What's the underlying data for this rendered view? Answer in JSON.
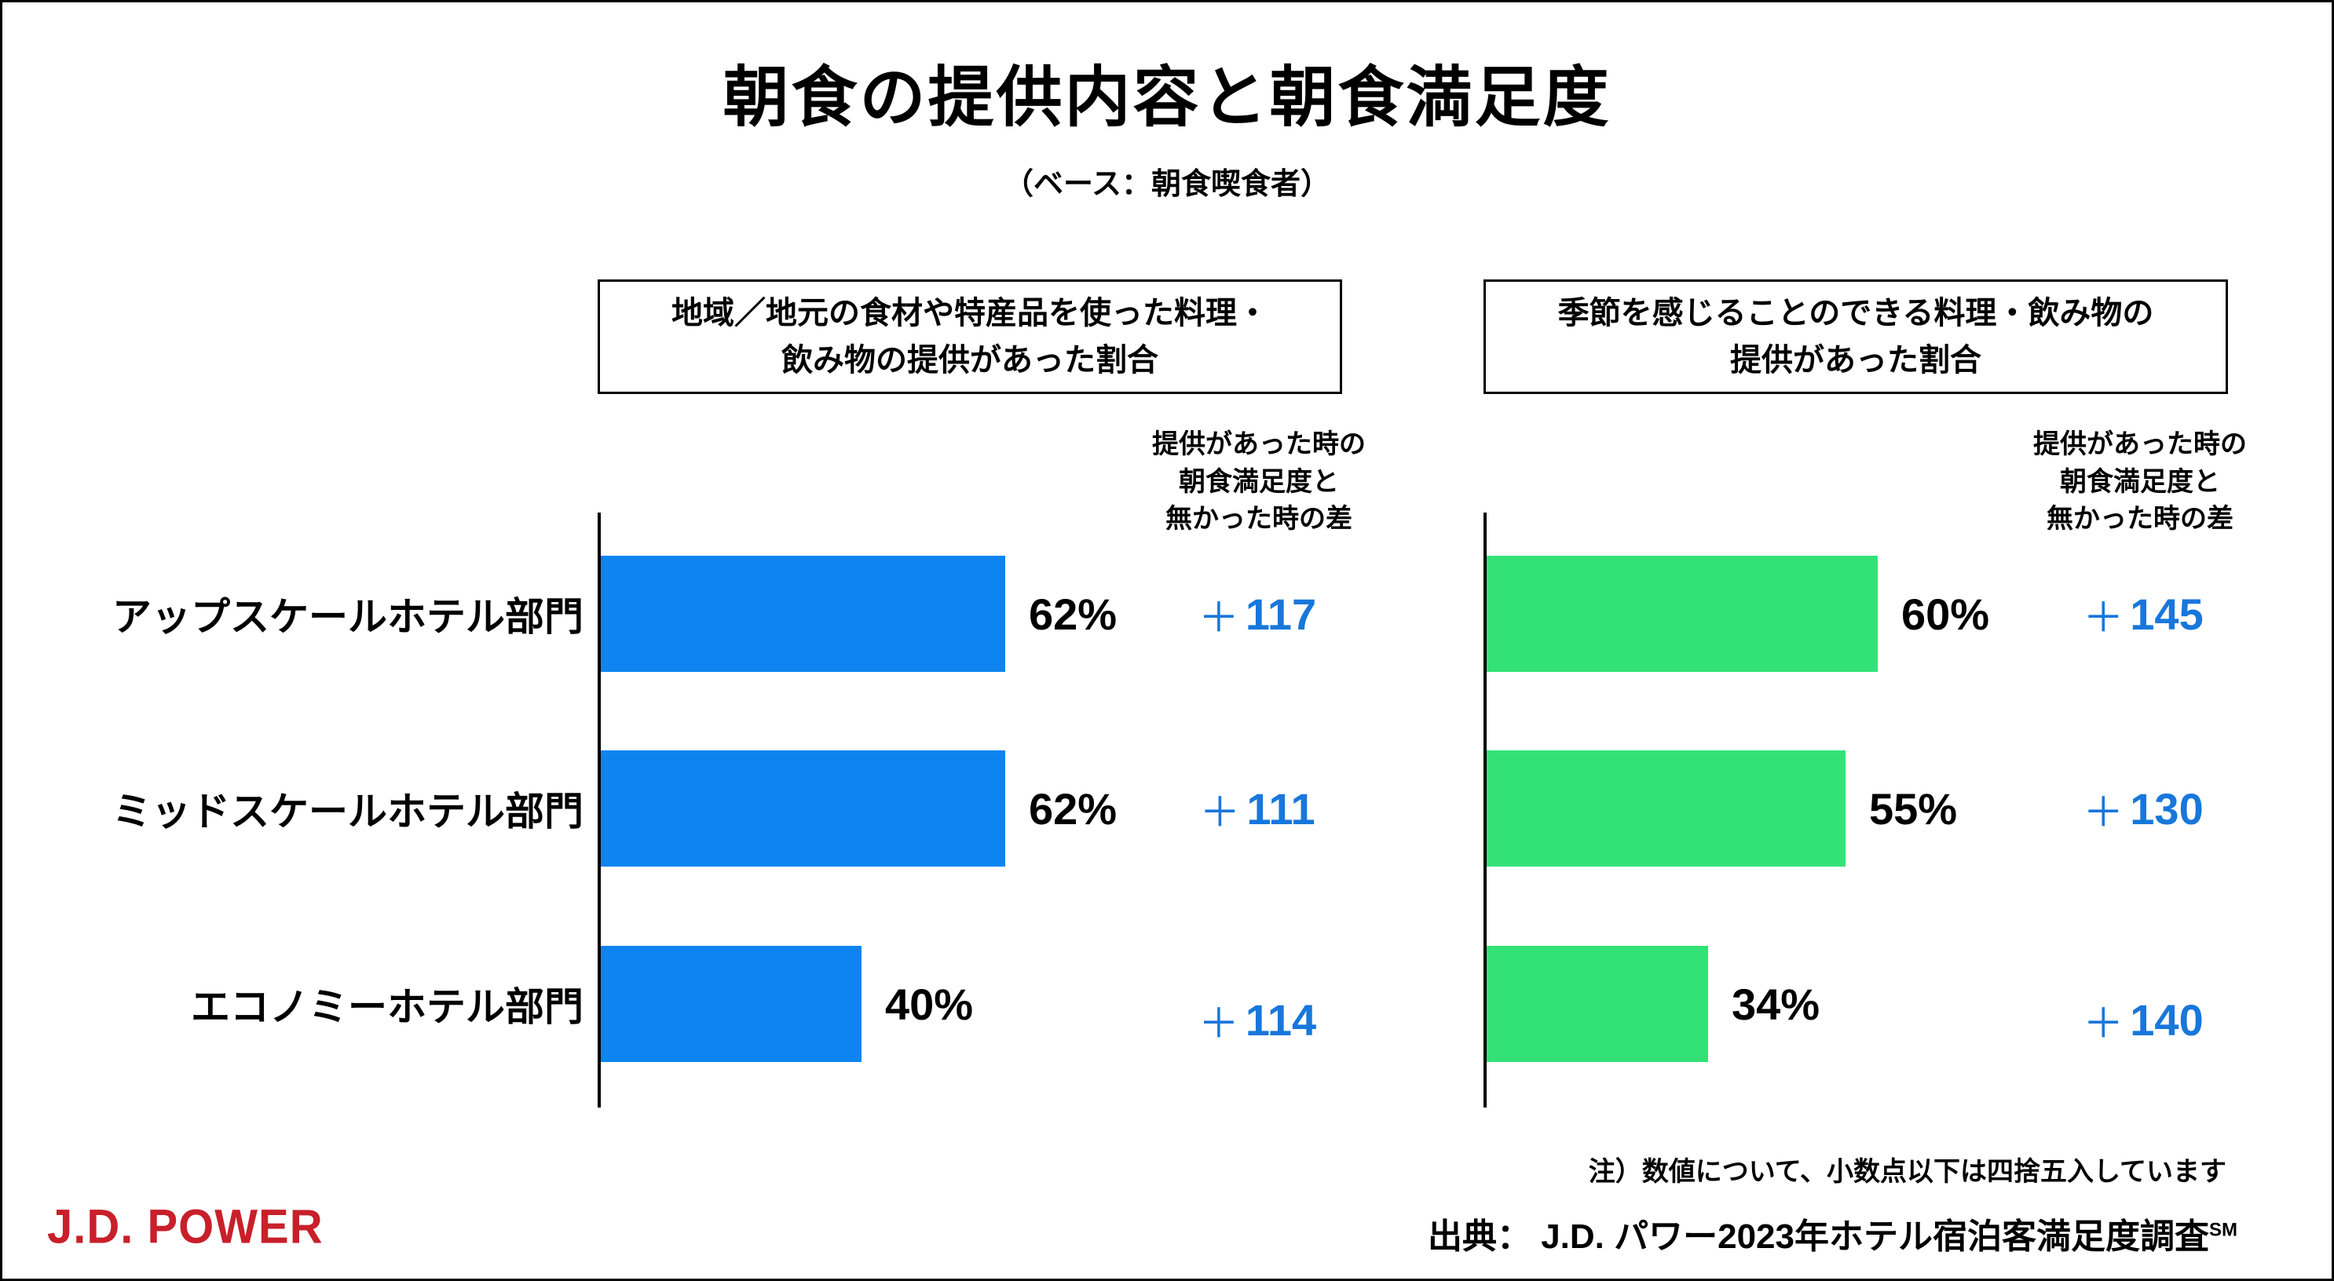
{
  "title": "朝食の提供内容と朝食満足度",
  "subtitle": "（ベース：朝食喫食者）",
  "plus_sign": "＋",
  "categories": [
    "アップスケールホテル部門",
    "ミッドスケールホテル部門",
    "エコノミーホテル部門"
  ],
  "panels": [
    {
      "header_lines": [
        "地域／地元の食材や特産品を使った料理・",
        "飲み物の提供があった割合"
      ],
      "diff_header_lines": [
        "提供があった時の",
        "朝食満足度と",
        "無かった時の差"
      ],
      "bar_color": "#0E84F0",
      "values": [
        62,
        62,
        40
      ],
      "value_labels": [
        "62%",
        "62%",
        "40%"
      ],
      "diff_values": [
        "117",
        "111",
        "114"
      ]
    },
    {
      "header_lines": [
        "季節を感じることのできる料理・飲み物の",
        "提供があった割合"
      ],
      "diff_header_lines": [
        "提供があった時の",
        "朝食満足度と",
        "無かった時の差"
      ],
      "bar_color": "#33E277",
      "values": [
        60,
        55,
        34
      ],
      "value_labels": [
        "60%",
        "55%",
        "34%"
      ],
      "diff_values": [
        "145",
        "130",
        "140"
      ]
    }
  ],
  "note": "注）数値について、小数点以下は四捨五入しています",
  "source": {
    "text": "出典： J.D. パワー2023年ホテル宿泊客満足度調査",
    "sup": "SM"
  },
  "logo_text": "J.D. POWER",
  "colors": {
    "bar_blue": "#0E84F0",
    "bar_green": "#33E277",
    "diff_text": "#1877DB",
    "logo_red": "#C8202A",
    "text": "#000000",
    "border": "#000000"
  },
  "chart_data": [
    {
      "type": "bar",
      "orientation": "horizontal",
      "title": "地域／地元の食材や特産品を使った料理・飲み物の提供があった割合",
      "subtitle": "（ベース：朝食喫食者）",
      "categories": [
        "アップスケールホテル部門",
        "ミッドスケールホテル部門",
        "エコノミーホテル部門"
      ],
      "values": [
        62,
        62,
        40
      ],
      "unit": "%",
      "xlim": [
        0,
        100
      ],
      "grid": false,
      "legend": "none",
      "bar_color": "#0E84F0",
      "diff_column": {
        "header": "提供があった時の朝食満足度と無かった時の差",
        "prefix": "＋",
        "values": [
          117,
          111,
          114
        ],
        "color": "#1877DB"
      }
    },
    {
      "type": "bar",
      "orientation": "horizontal",
      "title": "季節を感じることのできる料理・飲み物の提供があった割合",
      "subtitle": "（ベース：朝食喫食者）",
      "categories": [
        "アップスケールホテル部門",
        "ミッドスケールホテル部門",
        "エコノミーホテル部門"
      ],
      "values": [
        60,
        55,
        34
      ],
      "unit": "%",
      "xlim": [
        0,
        100
      ],
      "grid": false,
      "legend": "none",
      "bar_color": "#33E277",
      "diff_column": {
        "header": "提供があった時の朝食満足度と無かった時の差",
        "prefix": "＋",
        "values": [
          145,
          130,
          140
        ],
        "color": "#1877DB"
      }
    }
  ]
}
